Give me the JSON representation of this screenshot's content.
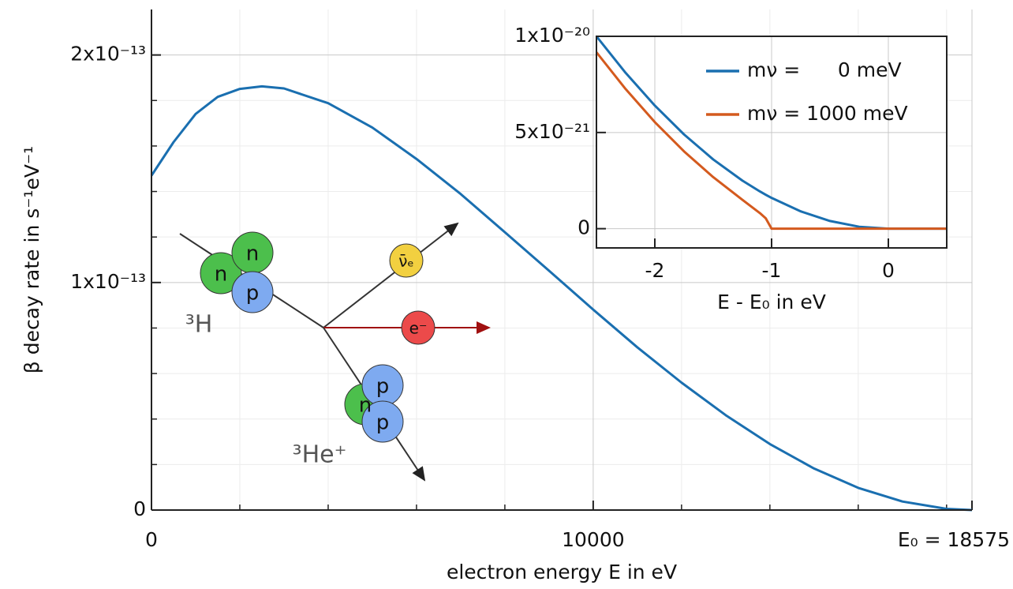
{
  "chart_data": [
    {
      "type": "line",
      "xlabel": "electron energy E in eV",
      "ylabel": "β decay rate in s⁻¹eV⁻¹",
      "x": [
        0,
        500,
        1000,
        1500,
        2000,
        2500,
        3000,
        4000,
        5000,
        6000,
        7000,
        8000,
        9000,
        10000,
        11000,
        12000,
        13000,
        14000,
        15000,
        16000,
        17000,
        18000,
        18575
      ],
      "series": [
        {
          "color": "#1a6fb0",
          "values": [
            1.47e-13,
            1.617e-13,
            1.741e-13,
            1.816e-13,
            1.851e-13,
            1.862e-13,
            1.853e-13,
            1.788e-13,
            1.681e-13,
            1.543e-13,
            1.389e-13,
            1.221e-13,
            1.052e-13,
            8.81e-14,
            7.15e-14,
            5.6e-14,
            4.17e-14,
            2.9e-14,
            1.825e-14,
            9.75e-15,
            3.75e-15,
            5.14e-16,
            0
          ]
        }
      ],
      "xlim": [
        0,
        18575
      ],
      "ylim": [
        0,
        2.2e-13
      ],
      "xticks": [
        0,
        10000,
        {
          "value": 18575,
          "label": "E₀ = 18575"
        }
      ],
      "yticks": [
        0,
        {
          "value": 1e-13,
          "label": "1x10⁻¹³"
        },
        {
          "value": 2e-13,
          "label": "2x10⁻¹³"
        }
      ],
      "xminorticks": [
        2000,
        4000,
        6000,
        8000,
        12000,
        14000,
        16000,
        18000
      ],
      "yminorticks": [
        2e-14,
        4e-14,
        6e-14,
        8e-14,
        1.2e-13,
        1.4e-13,
        1.6e-13,
        1.8e-13
      ],
      "grid": true,
      "annotations": [
        "n",
        "n",
        "p",
        "³H",
        "ν̄ₑ",
        "e⁻",
        "n",
        "p",
        "p",
        "³He⁺"
      ]
    },
    {
      "type": "line",
      "xlabel": "E - E₀ in eV",
      "x": [
        -2.5,
        -2.25,
        -2,
        -1.75,
        -1.5,
        -1.25,
        -1.1,
        -1.05,
        -1,
        -0.75,
        -0.5,
        -0.25,
        0,
        0.25,
        0.5
      ],
      "series": [
        {
          "name": "mν =      0 meV",
          "color": "#1a6fb0",
          "values": [
            1e-20,
            8.1e-21,
            6.4e-21,
            4.9e-21,
            3.6e-21,
            2.5e-21,
            1.936e-21,
            1.764e-21,
            1.6e-21,
            9e-22,
            4e-22,
            1e-22,
            0,
            0,
            0
          ]
        },
        {
          "name": "mν = 1000 meV",
          "color": "#d45a1e",
          "values": [
            9.17e-21,
            7.26e-21,
            5.54e-21,
            4.02e-21,
            2.68e-21,
            1.5e-21,
            8.1e-22,
            5.4e-22,
            0,
            0,
            0,
            0,
            0,
            0,
            0
          ]
        }
      ],
      "xlim": [
        -2.5,
        0.5
      ],
      "ylim": [
        -1e-21,
        1e-20
      ],
      "xticks": [
        -2,
        -1,
        0
      ],
      "yticks": [
        0,
        {
          "value": 5e-21,
          "label": "5x10⁻²¹"
        },
        {
          "value": 1e-20,
          "label": "1x10⁻²⁰"
        }
      ],
      "grid": true,
      "legend": "upper right"
    }
  ]
}
